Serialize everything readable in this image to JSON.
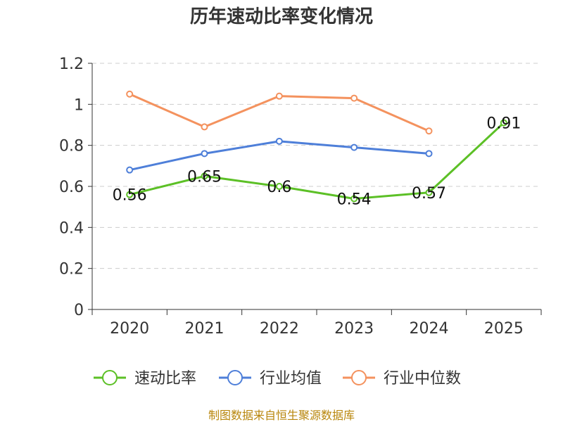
{
  "chart_data": {
    "type": "line",
    "title": "历年速动比率变化情况",
    "categories": [
      "2020",
      "2021",
      "2022",
      "2023",
      "2024",
      "2025"
    ],
    "ylim": [
      0,
      1.2
    ],
    "yticks": [
      "0",
      "0.2",
      "0.4",
      "0.6",
      "0.8",
      "1",
      "1.2"
    ],
    "grid": true,
    "legend_position": "bottom",
    "series": [
      {
        "name": "速动比率",
        "color": "#5cc026",
        "values": [
          0.56,
          0.65,
          0.6,
          0.54,
          0.57,
          0.91
        ],
        "labels": [
          "0.56",
          "0.65",
          "0.6",
          "0.54",
          "0.57",
          "0.91"
        ],
        "show_labels": true
      },
      {
        "name": "行业均值",
        "color": "#4e7fd9",
        "values": [
          0.68,
          0.76,
          0.82,
          0.79,
          0.76,
          null
        ],
        "show_labels": false
      },
      {
        "name": "行业中位数",
        "color": "#f4925e",
        "values": [
          1.05,
          0.89,
          1.04,
          1.03,
          0.87,
          null
        ],
        "show_labels": false
      }
    ],
    "source": "制图数据来自恒生聚源数据库"
  }
}
